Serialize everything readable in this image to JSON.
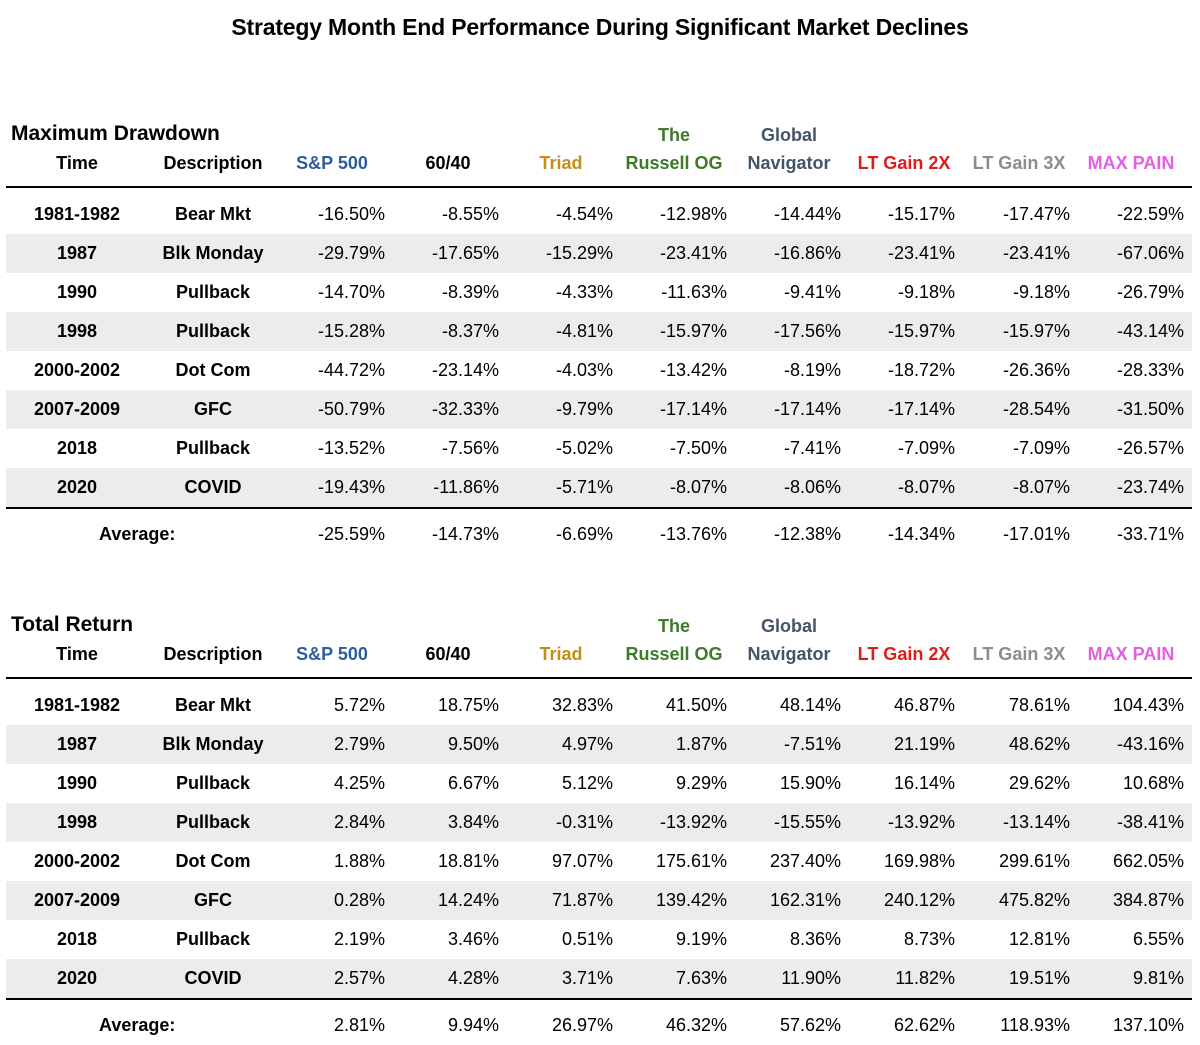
{
  "title": "Strategy Month End Performance During Significant Market Declines",
  "header_labels": {
    "time": "Time",
    "description": "Description"
  },
  "strategies": [
    {
      "line1": "",
      "line2": "S&P 500",
      "color": "#2e5d9c"
    },
    {
      "line1": "",
      "line2": "60/40",
      "color": "#000000"
    },
    {
      "line1": "",
      "line2": "Triad",
      "color": "#c28f1c"
    },
    {
      "line1": "The",
      "line2": "Russell OG",
      "color": "#3d7a2a"
    },
    {
      "line1": "Global",
      "line2": "Navigator",
      "color": "#44546a"
    },
    {
      "line1": "",
      "line2": "LT Gain 2X",
      "color": "#e01b1b"
    },
    {
      "line1": "",
      "line2": "LT Gain 3X",
      "color": "#8c8c8c"
    },
    {
      "line1": "",
      "line2": "MAX PAIN",
      "color": "#e35ee0"
    }
  ],
  "chart_data": [
    {
      "type": "table",
      "title": "Maximum Drawdown",
      "columns": [
        "Time",
        "Description",
        "S&P 500",
        "60/40",
        "Triad",
        "The Russell OG",
        "Global Navigator",
        "LT Gain 2X",
        "LT Gain 3X",
        "MAX PAIN"
      ],
      "rows": [
        {
          "time": "1981-1982",
          "desc": "Bear Mkt",
          "values": [
            "-16.50%",
            "-8.55%",
            "-4.54%",
            "-12.98%",
            "-14.44%",
            "-15.17%",
            "-17.47%",
            "-22.59%"
          ]
        },
        {
          "time": "1987",
          "desc": "Blk Monday",
          "values": [
            "-29.79%",
            "-17.65%",
            "-15.29%",
            "-23.41%",
            "-16.86%",
            "-23.41%",
            "-23.41%",
            "-67.06%"
          ]
        },
        {
          "time": "1990",
          "desc": "Pullback",
          "values": [
            "-14.70%",
            "-8.39%",
            "-4.33%",
            "-11.63%",
            "-9.41%",
            "-9.18%",
            "-9.18%",
            "-26.79%"
          ]
        },
        {
          "time": "1998",
          "desc": "Pullback",
          "values": [
            "-15.28%",
            "-8.37%",
            "-4.81%",
            "-15.97%",
            "-17.56%",
            "-15.97%",
            "-15.97%",
            "-43.14%"
          ]
        },
        {
          "time": "2000-2002",
          "desc": "Dot Com",
          "values": [
            "-44.72%",
            "-23.14%",
            "-4.03%",
            "-13.42%",
            "-8.19%",
            "-18.72%",
            "-26.36%",
            "-28.33%"
          ]
        },
        {
          "time": "2007-2009",
          "desc": "GFC",
          "values": [
            "-50.79%",
            "-32.33%",
            "-9.79%",
            "-17.14%",
            "-17.14%",
            "-17.14%",
            "-28.54%",
            "-31.50%"
          ]
        },
        {
          "time": "2018",
          "desc": "Pullback",
          "values": [
            "-13.52%",
            "-7.56%",
            "-5.02%",
            "-7.50%",
            "-7.41%",
            "-7.09%",
            "-7.09%",
            "-26.57%"
          ]
        },
        {
          "time": "2020",
          "desc": "COVID",
          "values": [
            "-19.43%",
            "-11.86%",
            "-5.71%",
            "-8.07%",
            "-8.06%",
            "-8.07%",
            "-8.07%",
            "-23.74%"
          ]
        }
      ],
      "average": {
        "label": "Average:",
        "values": [
          "-25.59%",
          "-14.73%",
          "-6.69%",
          "-13.76%",
          "-12.38%",
          "-14.34%",
          "-17.01%",
          "-33.71%"
        ]
      }
    },
    {
      "type": "table",
      "title": "Total Return",
      "columns": [
        "Time",
        "Description",
        "S&P 500",
        "60/40",
        "Triad",
        "The Russell OG",
        "Global Navigator",
        "LT Gain 2X",
        "LT Gain 3X",
        "MAX PAIN"
      ],
      "rows": [
        {
          "time": "1981-1982",
          "desc": "Bear Mkt",
          "values": [
            "5.72%",
            "18.75%",
            "32.83%",
            "41.50%",
            "48.14%",
            "46.87%",
            "78.61%",
            "104.43%"
          ]
        },
        {
          "time": "1987",
          "desc": "Blk Monday",
          "values": [
            "2.79%",
            "9.50%",
            "4.97%",
            "1.87%",
            "-7.51%",
            "21.19%",
            "48.62%",
            "-43.16%"
          ]
        },
        {
          "time": "1990",
          "desc": "Pullback",
          "values": [
            "4.25%",
            "6.67%",
            "5.12%",
            "9.29%",
            "15.90%",
            "16.14%",
            "29.62%",
            "10.68%"
          ]
        },
        {
          "time": "1998",
          "desc": "Pullback",
          "values": [
            "2.84%",
            "3.84%",
            "-0.31%",
            "-13.92%",
            "-15.55%",
            "-13.92%",
            "-13.14%",
            "-38.41%"
          ]
        },
        {
          "time": "2000-2002",
          "desc": "Dot Com",
          "values": [
            "1.88%",
            "18.81%",
            "97.07%",
            "175.61%",
            "237.40%",
            "169.98%",
            "299.61%",
            "662.05%"
          ]
        },
        {
          "time": "2007-2009",
          "desc": "GFC",
          "values": [
            "0.28%",
            "14.24%",
            "71.87%",
            "139.42%",
            "162.31%",
            "240.12%",
            "475.82%",
            "384.87%"
          ]
        },
        {
          "time": "2018",
          "desc": "Pullback",
          "values": [
            "2.19%",
            "3.46%",
            "0.51%",
            "9.19%",
            "8.36%",
            "8.73%",
            "12.81%",
            "6.55%"
          ]
        },
        {
          "time": "2020",
          "desc": "COVID",
          "values": [
            "2.57%",
            "4.28%",
            "3.71%",
            "7.63%",
            "11.90%",
            "11.82%",
            "19.51%",
            "9.81%"
          ]
        }
      ],
      "average": {
        "label": "Average:",
        "values": [
          "2.81%",
          "9.94%",
          "26.97%",
          "46.32%",
          "57.62%",
          "62.62%",
          "118.93%",
          "137.10%"
        ]
      }
    }
  ]
}
